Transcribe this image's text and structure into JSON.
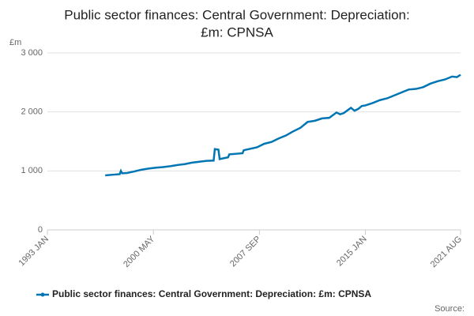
{
  "chart_data": {
    "type": "line",
    "title": "Public sector finances: Central Government: Depreciation:",
    "subtitle": "£m: CPNSA",
    "y_label": "£m",
    "source": "Source:",
    "x": [
      "1997 JAN",
      "1997 JUL",
      "1998 JAN",
      "1998 FEB",
      "1998 MAR",
      "1998 JUL",
      "1999 JAN",
      "1999 JUL",
      "2000 JAN",
      "2000 JUL",
      "2001 JAN",
      "2001 JUL",
      "2002 JAN",
      "2002 JUL",
      "2003 JAN",
      "2003 JUL",
      "2004 JAN",
      "2004 JUL",
      "2004 AUG",
      "2004 NOV",
      "2004 DEC",
      "2005 JUL",
      "2005 AUG",
      "2006 JUL",
      "2006 AUG",
      "2007 JUL",
      "2008 JAN",
      "2008 JUL",
      "2009 JAN",
      "2009 JUL",
      "2010 JAN",
      "2010 JUL",
      "2011 JAN",
      "2011 JUL",
      "2012 JAN",
      "2012 JUL",
      "2013 JAN",
      "2013 APR",
      "2013 JUL",
      "2014 JAN",
      "2014 APR",
      "2014 JUL",
      "2014 OCT",
      "2015 JAN",
      "2015 JUL",
      "2016 JAN",
      "2016 JUL",
      "2017 JAN",
      "2017 JUL",
      "2018 JAN",
      "2018 JUL",
      "2019 JAN",
      "2019 JUL",
      "2020 JAN",
      "2020 JUL",
      "2021 JAN",
      "2021 MAY",
      "2021 AUG"
    ],
    "series": [
      {
        "name": "Public sector finances: Central Government: Depreciation: £m: CPNSA",
        "color": "#0075b4",
        "values": [
          924,
          935,
          945,
          1000,
          960,
          965,
          990,
          1020,
          1040,
          1055,
          1065,
          1080,
          1100,
          1115,
          1140,
          1155,
          1170,
          1175,
          1370,
          1360,
          1200,
          1230,
          1280,
          1300,
          1350,
          1400,
          1460,
          1490,
          1550,
          1600,
          1670,
          1730,
          1830,
          1850,
          1890,
          1900,
          1990,
          1960,
          1980,
          2070,
          2020,
          2050,
          2100,
          2110,
          2150,
          2200,
          2230,
          2280,
          2330,
          2380,
          2390,
          2420,
          2480,
          2520,
          2550,
          2600,
          2590,
          2630
        ]
      }
    ],
    "xlim": [
      "1993 JAN",
      "2021 AUG"
    ],
    "xticks": [
      "1993 JAN",
      "2000 MAY",
      "2007 SEP",
      "2015 JAN",
      "2021 AUG"
    ],
    "ylim": [
      0,
      3000
    ],
    "yticks": [
      {
        "value": 0,
        "label": "0"
      },
      {
        "value": 1000,
        "label": "1 000"
      },
      {
        "value": 2000,
        "label": "2 000"
      },
      {
        "value": 3000,
        "label": "3 000"
      }
    ],
    "grid": true
  }
}
